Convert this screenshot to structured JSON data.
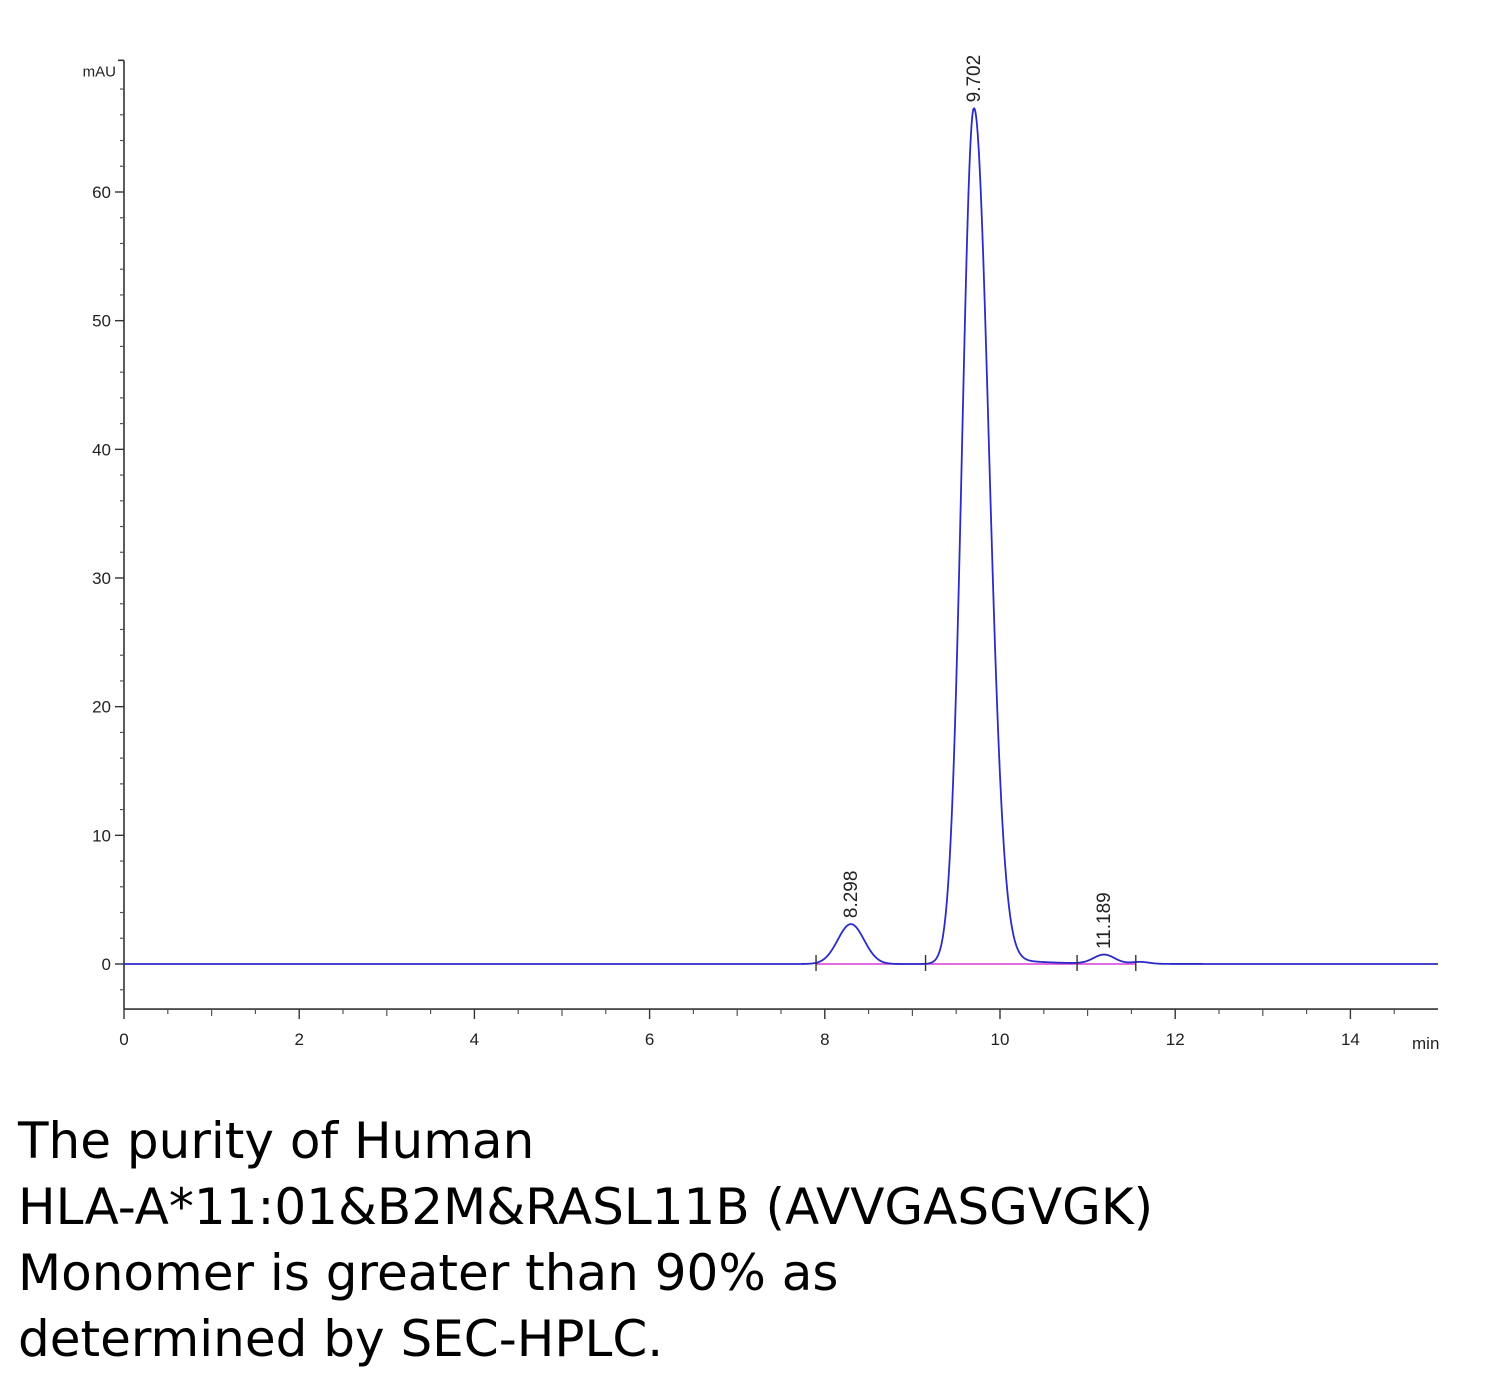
{
  "chart_data": {
    "type": "line",
    "xlabel": "min",
    "ylabel": "mAU",
    "xlim": [
      0,
      15
    ],
    "ylim": [
      -3.5,
      70
    ],
    "x_ticks": [
      0,
      2,
      4,
      6,
      8,
      10,
      12,
      14
    ],
    "y_ticks": [
      0,
      10,
      20,
      30,
      40,
      50,
      60
    ],
    "grid": false,
    "line_color": "#2b2bc8",
    "baseline_color": "#d63fd6",
    "peaks": [
      {
        "retention_time": 8.298,
        "label": "8.298",
        "height": 3.1
      },
      {
        "retention_time": 9.702,
        "label": "9.702",
        "height": 66.5
      },
      {
        "retention_time": 11.189,
        "label": "11.189",
        "height": 0.7
      }
    ],
    "integration_marks": [
      7.9,
      9.15,
      10.88,
      11.55
    ]
  },
  "caption": {
    "line1": "The purity of Human",
    "line2": "HLA-A*11:01&B2M&RASL11B (AVVGASGVGK)",
    "line3": "Monomer is greater than 90% as",
    "line4": "determined by SEC-HPLC."
  }
}
